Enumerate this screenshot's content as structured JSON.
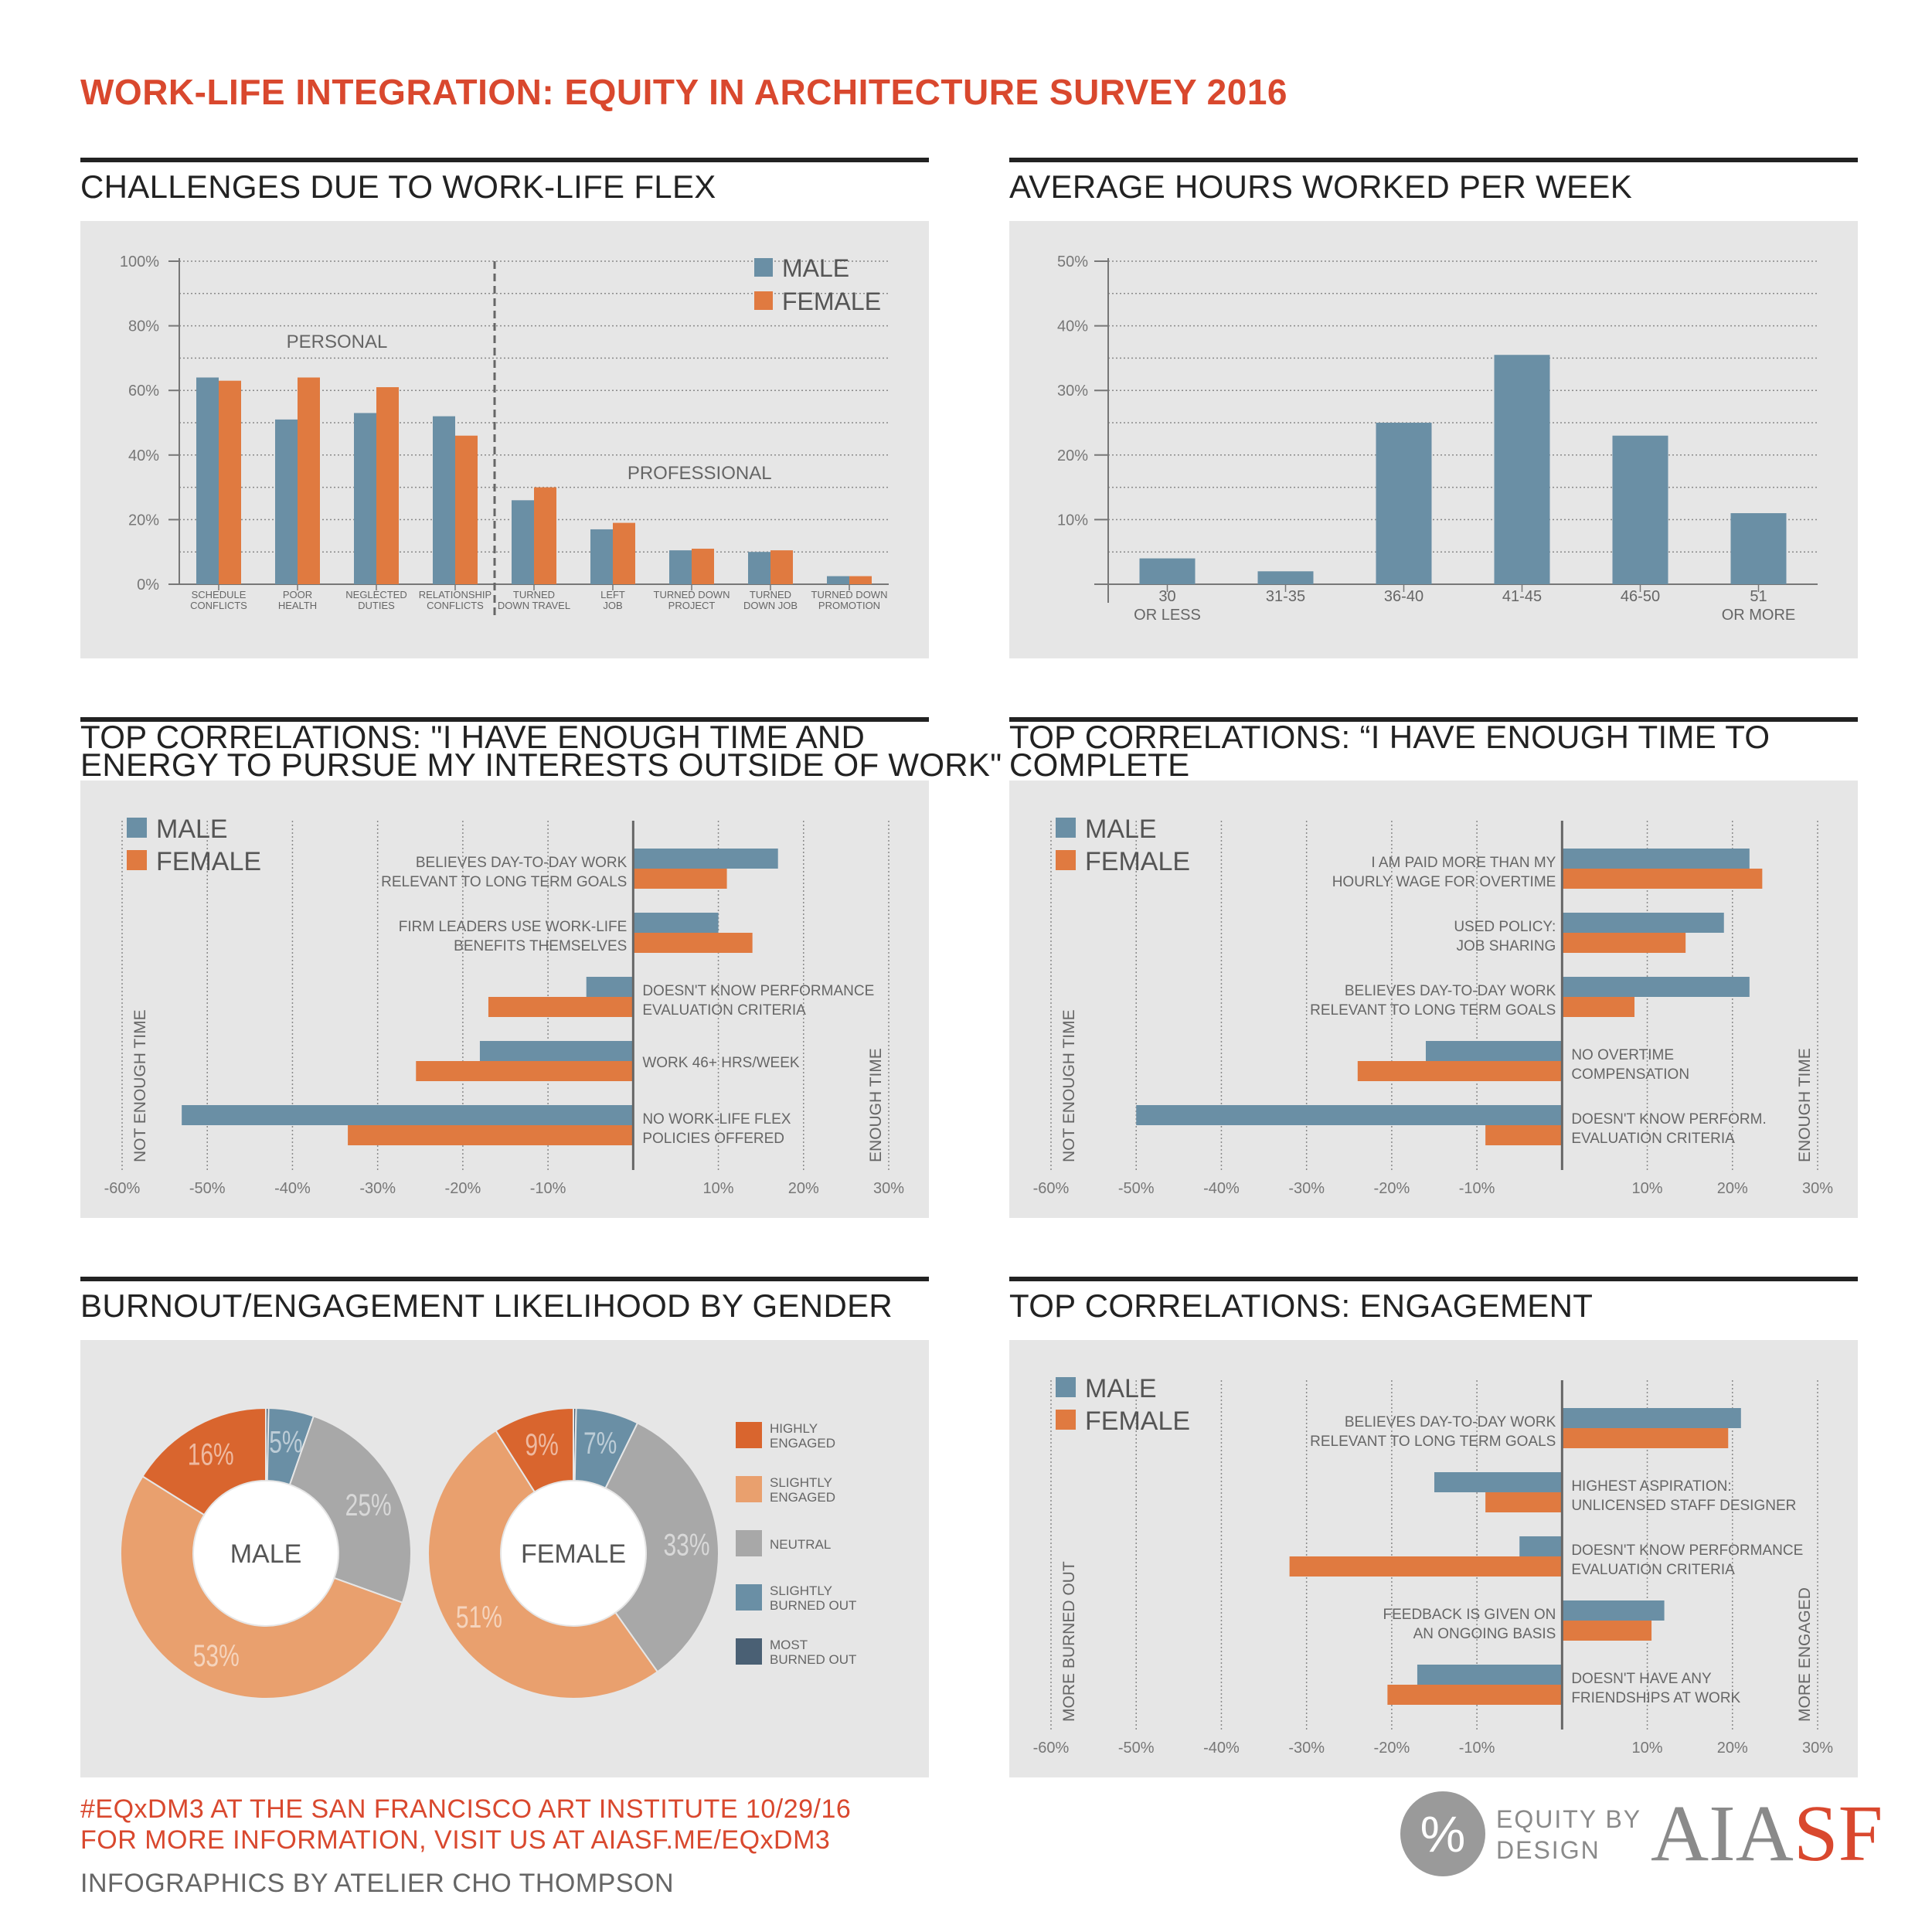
{
  "page_title": "WORK-LIFE INTEGRATION: EQUITY IN ARCHITECTURE SURVEY 2016",
  "colors": {
    "male": "#6a8fa5",
    "female": "#e07a40",
    "highly_engaged": "#d9652e",
    "slightly_engaged": "#e9a06e",
    "neutral": "#a8a8a8",
    "slightly_burned_out": "#6a8fa5",
    "most_burned_out": "#4a6074",
    "accent": "#d9482e",
    "panel": "#e6e6e6"
  },
  "legend": {
    "male": "MALE",
    "female": "FEMALE"
  },
  "footer": {
    "line1": "#EQxDM3 AT THE SAN FRANCISCO ART INSTITUTE 10/29/16",
    "line2": "FOR MORE INFORMATION, VISIT US AT AIASF.ME/EQxDM3",
    "line3": "INFOGRAPHICS BY ATELIER CHO THOMPSON"
  },
  "logos": {
    "equity_symbol": "%",
    "equity_line1": "EQUITY BY",
    "equity_line2": "DESIGN",
    "aia": "AIA",
    "sf": "SF"
  },
  "chart_data": [
    {
      "id": "challenges",
      "type": "bar",
      "title": "CHALLENGES DUE TO WORK-LIFE FLEX",
      "groups": [
        {
          "label": "PERSONAL",
          "range": [
            0,
            3
          ]
        },
        {
          "label": "PROFESSIONAL",
          "range": [
            4,
            8
          ]
        }
      ],
      "categories": [
        "SCHEDULE\nCONFLICTS",
        "POOR\nHEALTH",
        "NEGLECTED\nDUTIES",
        "RELATIONSHIP\nCONFLICTS",
        "TURNED\nDOWN TRAVEL",
        "LEFT\nJOB",
        "TURNED DOWN\nPROJECT",
        "TURNED\nDOWN JOB",
        "TURNED DOWN\nPROMOTION"
      ],
      "series": [
        {
          "name": "MALE",
          "values": [
            64,
            51,
            53,
            52,
            26,
            17,
            10.5,
            10,
            2.5
          ]
        },
        {
          "name": "FEMALE",
          "values": [
            63,
            64,
            61,
            46,
            30,
            19,
            11,
            10.5,
            2.5
          ]
        }
      ],
      "ylim": [
        0,
        100
      ],
      "yticks": [
        "0%",
        "20%",
        "40%",
        "60%",
        "80%",
        "100%"
      ],
      "grid": true,
      "legend_position": "top-right"
    },
    {
      "id": "hours",
      "type": "bar",
      "title": "AVERAGE HOURS WORKED PER WEEK",
      "categories": [
        "30\nOR LESS",
        "31-35",
        "36-40",
        "41-45",
        "46-50",
        "51\nOR MORE"
      ],
      "values": [
        4,
        2,
        25,
        35.5,
        23,
        11
      ],
      "ylim": [
        0,
        50
      ],
      "yticks": [
        "",
        "10%",
        "20%",
        "30%",
        "40%",
        "50%"
      ],
      "grid": true
    },
    {
      "id": "time_interests",
      "type": "bar",
      "orientation": "horizontal",
      "title": "TOP CORRELATIONS: \"I HAVE ENOUGH TIME AND\nENERGY TO PURSUE MY INTERESTS OUTSIDE OF WORK\"",
      "categories": [
        "BELIEVES DAY-TO-DAY WORK\nRELEVANT TO LONG TERM GOALS",
        "FIRM LEADERS USE WORK-LIFE\nBENEFITS THEMSELVES",
        "DOESN'T KNOW PERFORMANCE\nEVALUATION CRITERIA",
        "WORK 46+ HRS/WEEK",
        "NO WORK-LIFE FLEX\nPOLICIES OFFERED"
      ],
      "series": [
        {
          "name": "MALE",
          "values": [
            17,
            10,
            -5.5,
            -18,
            -53
          ]
        },
        {
          "name": "FEMALE",
          "values": [
            11,
            14,
            -17,
            -25.5,
            -33.5
          ]
        }
      ],
      "xlim": [
        -60,
        30
      ],
      "xticks": [
        "-60%",
        "-50%",
        "-40%",
        "-30%",
        "-20%",
        "-10%",
        "",
        "10%",
        "20%",
        "30%"
      ],
      "negative_label": "NOT ENOUGH TIME",
      "positive_label": "ENOUGH TIME"
    },
    {
      "id": "time_work",
      "type": "bar",
      "orientation": "horizontal",
      "title": "TOP CORRELATIONS: “I HAVE ENOUGH TIME TO COMPLETE\nMY WORK”",
      "categories": [
        "I AM PAID MORE THAN MY\nHOURLY WAGE FOR OVERTIME",
        "USED POLICY:\nJOB SHARING",
        "BELIEVES DAY-TO-DAY WORK\nRELEVANT TO LONG TERM GOALS",
        "NO OVERTIME\nCOMPENSATION",
        "DOESN'T KNOW PERFORM.\nEVALUATION CRITERIA"
      ],
      "series": [
        {
          "name": "MALE",
          "values": [
            22,
            19,
            22,
            -16,
            -50
          ]
        },
        {
          "name": "FEMALE",
          "values": [
            23.5,
            14.5,
            8.5,
            -24,
            -9
          ]
        }
      ],
      "xlim": [
        -60,
        30
      ],
      "xticks": [
        "-60%",
        "-50%",
        "-40%",
        "-30%",
        "-20%",
        "-10%",
        "",
        "10%",
        "20%",
        "30%"
      ],
      "negative_label": "NOT ENOUGH TIME",
      "positive_label": "ENOUGH TIME"
    },
    {
      "id": "burnout",
      "type": "pie",
      "title": "BURNOUT/ENGAGEMENT LIKELIHOOD BY GENDER",
      "slice_labels": [
        "HIGHLY\nENGAGED",
        "SLIGHTLY\nENGAGED",
        "NEUTRAL",
        "SLIGHTLY\nBURNED OUT",
        "MOST\nBURNED OUT"
      ],
      "pies": [
        {
          "name": "MALE",
          "values": [
            0.3,
            5,
            25,
            53,
            16
          ],
          "order": [
            "most_burned_out",
            "slightly_burned_out",
            "neutral",
            "slightly_engaged",
            "highly_engaged"
          ],
          "labels": [
            "",
            "5%",
            "25%",
            "53%",
            "16%"
          ]
        },
        {
          "name": "FEMALE",
          "values": [
            0.3,
            7,
            33,
            51,
            9
          ],
          "order": [
            "most_burned_out",
            "slightly_burned_out",
            "neutral",
            "slightly_engaged",
            "highly_engaged"
          ],
          "labels": [
            "",
            "7%",
            "33%",
            "51%",
            "9%"
          ]
        }
      ]
    },
    {
      "id": "engagement",
      "type": "bar",
      "orientation": "horizontal",
      "title": "TOP CORRELATIONS: ENGAGEMENT",
      "categories": [
        "BELIEVES DAY-TO-DAY WORK\nRELEVANT TO LONG TERM GOALS",
        "HIGHEST ASPIRATION:\nUNLICENSED STAFF DESIGNER",
        "DOESN'T KNOW PERFORMANCE\nEVALUATION CRITERIA",
        "FEEDBACK IS GIVEN ON\nAN ONGOING BASIS",
        "DOESN'T HAVE ANY\nFRIENDSHIPS AT WORK"
      ],
      "series": [
        {
          "name": "MALE",
          "values": [
            21,
            -15,
            -5,
            12,
            -17
          ]
        },
        {
          "name": "FEMALE",
          "values": [
            19.5,
            -9,
            -32,
            10.5,
            -20.5
          ]
        }
      ],
      "xlim": [
        -60,
        30
      ],
      "xticks": [
        "-60%",
        "-50%",
        "-40%",
        "-30%",
        "-20%",
        "-10%",
        "",
        "10%",
        "20%",
        "30%"
      ],
      "negative_label": "MORE BURNED OUT",
      "positive_label": "MORE ENGAGED"
    }
  ]
}
